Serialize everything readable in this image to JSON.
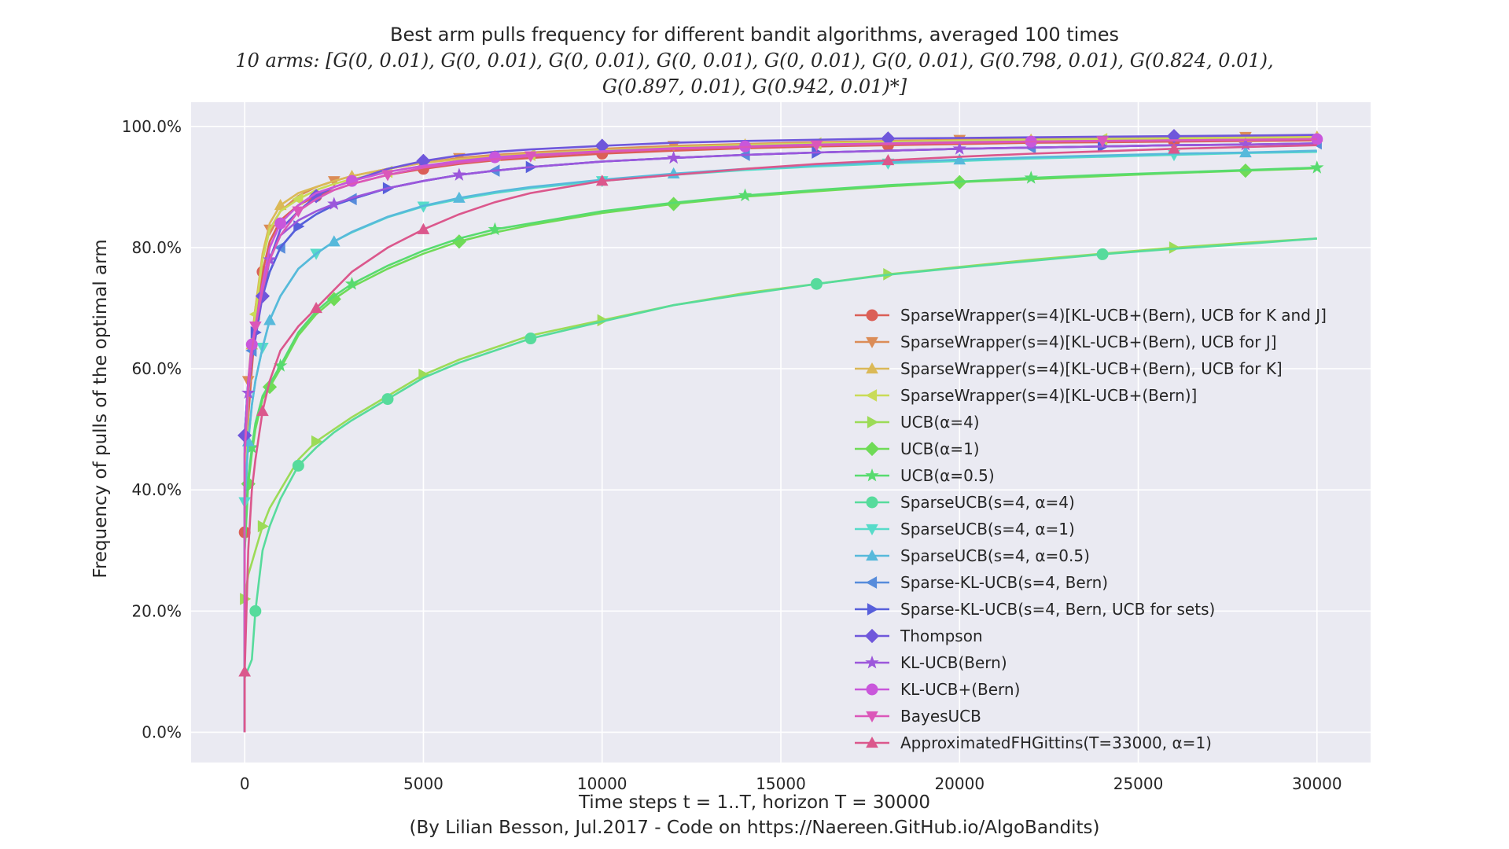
{
  "chart_data": {
    "type": "line",
    "title_line1": "Best arm pulls frequency for different bandit algorithms, averaged 100 times",
    "title_line2": "10 arms: [G(0, 0.01), G(0, 0.01), G(0, 0.01), G(0, 0.01), G(0, 0.01), G(0, 0.01), G(0.798, 0.01), G(0.824, 0.01),",
    "title_line3": "G(0.897, 0.01), G(0.942, 0.01)*]",
    "xlabel": "Time steps t = 1..T, horizon T = 30000",
    "caption": "(By Lilian Besson, Jul.2017 - Code on https://Naereen.GitHub.io/AlgoBandits)",
    "ylabel": "Frequency of pulls of the optimal arm",
    "xlim": [
      -1500,
      31500
    ],
    "ylim": [
      -0.05,
      1.04
    ],
    "xticks": [
      0,
      5000,
      10000,
      15000,
      20000,
      25000,
      30000
    ],
    "xtick_labels": [
      "0",
      "5000",
      "10000",
      "15000",
      "20000",
      "25000",
      "30000"
    ],
    "yticks": [
      0,
      0.2,
      0.4,
      0.6,
      0.8,
      1.0
    ],
    "ytick_labels": [
      "0.0%",
      "20.0%",
      "40.0%",
      "60.0%",
      "80.0%",
      "100.0%"
    ],
    "grid": true,
    "legend_position": "lower-right",
    "x": [
      0,
      100,
      200,
      300,
      500,
      700,
      1000,
      1500,
      2000,
      2500,
      3000,
      4000,
      5000,
      6000,
      7000,
      8000,
      10000,
      12000,
      14000,
      16000,
      18000,
      20000,
      22000,
      24000,
      26000,
      28000,
      30000
    ],
    "series": [
      {
        "name": "SparseWrapper(s=4)[KL-UCB+(Bern), UCB for K and J]",
        "color": "#db5f57",
        "marker": "o",
        "values": [
          0.33,
          0.52,
          0.6,
          0.67,
          0.76,
          0.81,
          0.845,
          0.87,
          0.885,
          0.895,
          0.905,
          0.92,
          0.93,
          0.938,
          0.944,
          0.948,
          0.955,
          0.96,
          0.964,
          0.967,
          0.969,
          0.971,
          0.973,
          0.974,
          0.975,
          0.976,
          0.977
        ]
      },
      {
        "name": "SparseWrapper(s=4)[KL-UCB+(Bern), UCB for J]",
        "color": "#db8c57",
        "marker": "v",
        "values": [
          0.41,
          0.58,
          0.65,
          0.7,
          0.78,
          0.83,
          0.86,
          0.885,
          0.9,
          0.91,
          0.918,
          0.93,
          0.94,
          0.948,
          0.953,
          0.957,
          0.963,
          0.968,
          0.971,
          0.974,
          0.976,
          0.978,
          0.98,
          0.981,
          0.982,
          0.983,
          0.984
        ]
      },
      {
        "name": "SparseWrapper(s=4)[KL-UCB+(Bern), UCB for K]",
        "color": "#dbb957",
        "marker": "^",
        "values": [
          0.37,
          0.56,
          0.64,
          0.7,
          0.79,
          0.84,
          0.87,
          0.89,
          0.9,
          0.91,
          0.918,
          0.93,
          0.94,
          0.946,
          0.951,
          0.955,
          0.961,
          0.966,
          0.97,
          0.972,
          0.975,
          0.977,
          0.978,
          0.98,
          0.981,
          0.982,
          0.983
        ]
      },
      {
        "name": "SparseWrapper(s=4)[KL-UCB+(Bern)]",
        "color": "#c9db57",
        "marker": "<",
        "values": [
          0.37,
          0.55,
          0.63,
          0.69,
          0.78,
          0.83,
          0.86,
          0.88,
          0.895,
          0.905,
          0.913,
          0.925,
          0.935,
          0.942,
          0.948,
          0.953,
          0.96,
          0.965,
          0.969,
          0.972,
          0.974,
          0.976,
          0.978,
          0.979,
          0.98,
          0.981,
          0.982
        ]
      },
      {
        "name": "UCB(α=4)",
        "color": "#9cdb57",
        "marker": ">",
        "values": [
          0.22,
          0.26,
          0.28,
          0.3,
          0.34,
          0.37,
          0.4,
          0.45,
          0.48,
          0.5,
          0.52,
          0.555,
          0.59,
          0.615,
          0.635,
          0.655,
          0.68,
          0.705,
          0.725,
          0.74,
          0.756,
          0.768,
          0.78,
          0.79,
          0.8,
          0.808,
          0.815
        ]
      },
      {
        "name": "UCB(α=1)",
        "color": "#6fdb57",
        "marker": "D",
        "values": [
          0.3,
          0.41,
          0.46,
          0.5,
          0.55,
          0.57,
          0.6,
          0.655,
          0.69,
          0.715,
          0.735,
          0.765,
          0.79,
          0.81,
          0.825,
          0.837,
          0.857,
          0.872,
          0.884,
          0.893,
          0.901,
          0.908,
          0.913,
          0.918,
          0.923,
          0.927,
          0.931
        ]
      },
      {
        "name": "UCB(α=0.5)",
        "color": "#57db6f",
        "marker": "*",
        "values": [
          0.3,
          0.42,
          0.47,
          0.51,
          0.555,
          0.575,
          0.605,
          0.66,
          0.695,
          0.72,
          0.74,
          0.77,
          0.795,
          0.815,
          0.83,
          0.84,
          0.86,
          0.874,
          0.886,
          0.895,
          0.903,
          0.909,
          0.915,
          0.92,
          0.924,
          0.928,
          0.932
        ]
      },
      {
        "name": "SparseUCB(s=4, α=4)",
        "color": "#57db9c",
        "marker": "o",
        "values": [
          0.09,
          0.105,
          0.12,
          0.2,
          0.3,
          0.34,
          0.385,
          0.44,
          0.47,
          0.495,
          0.515,
          0.55,
          0.585,
          0.61,
          0.63,
          0.65,
          0.678,
          0.705,
          0.723,
          0.74,
          0.755,
          0.767,
          0.778,
          0.789,
          0.798,
          0.806,
          0.815
        ]
      },
      {
        "name": "SparseUCB(s=4, α=1)",
        "color": "#57dbc9",
        "marker": "v",
        "values": [
          0.38,
          0.48,
          0.54,
          0.58,
          0.635,
          0.68,
          0.72,
          0.765,
          0.79,
          0.81,
          0.825,
          0.85,
          0.868,
          0.88,
          0.89,
          0.898,
          0.91,
          0.92,
          0.928,
          0.934,
          0.939,
          0.943,
          0.947,
          0.95,
          0.953,
          0.956,
          0.958
        ]
      },
      {
        "name": "SparseUCB(s=4, α=0.5)",
        "color": "#57b9db",
        "marker": "^",
        "values": [
          0.38,
          0.48,
          0.54,
          0.58,
          0.635,
          0.68,
          0.72,
          0.765,
          0.79,
          0.81,
          0.826,
          0.851,
          0.869,
          0.882,
          0.892,
          0.9,
          0.912,
          0.922,
          0.93,
          0.936,
          0.941,
          0.945,
          0.949,
          0.952,
          0.955,
          0.957,
          0.96
        ]
      },
      {
        "name": "Sparse-KL-UCB(s=4, Bern)",
        "color": "#578cdb",
        "marker": "<",
        "values": [
          0.49,
          0.58,
          0.63,
          0.66,
          0.72,
          0.76,
          0.8,
          0.835,
          0.855,
          0.87,
          0.88,
          0.898,
          0.91,
          0.92,
          0.927,
          0.933,
          0.942,
          0.948,
          0.953,
          0.957,
          0.96,
          0.963,
          0.965,
          0.967,
          0.969,
          0.97,
          0.972
        ]
      },
      {
        "name": "Sparse-KL-UCB(s=4, Bern, UCB for sets)",
        "color": "#575fdb",
        "marker": ">",
        "values": [
          0.49,
          0.58,
          0.63,
          0.66,
          0.72,
          0.76,
          0.8,
          0.835,
          0.855,
          0.87,
          0.88,
          0.898,
          0.91,
          0.92,
          0.927,
          0.933,
          0.942,
          0.948,
          0.953,
          0.957,
          0.96,
          0.963,
          0.965,
          0.967,
          0.969,
          0.97,
          0.972
        ]
      },
      {
        "name": "Thompson",
        "color": "#6f57db",
        "marker": "D",
        "values": [
          0.49,
          0.58,
          0.62,
          0.65,
          0.72,
          0.78,
          0.83,
          0.86,
          0.885,
          0.9,
          0.91,
          0.93,
          0.943,
          0.952,
          0.958,
          0.962,
          0.968,
          0.973,
          0.976,
          0.978,
          0.98,
          0.981,
          0.982,
          0.983,
          0.984,
          0.985,
          0.986
        ]
      },
      {
        "name": "KL-UCB(Bern)",
        "color": "#9c57db",
        "marker": "*",
        "values": [
          0.46,
          0.56,
          0.62,
          0.67,
          0.74,
          0.78,
          0.82,
          0.845,
          0.86,
          0.872,
          0.882,
          0.898,
          0.91,
          0.92,
          0.927,
          0.933,
          0.942,
          0.948,
          0.953,
          0.957,
          0.96,
          0.963,
          0.965,
          0.967,
          0.969,
          0.97,
          0.972
        ]
      },
      {
        "name": "KL-UCB+(Bern)",
        "color": "#c957db",
        "marker": "o",
        "values": [
          0.46,
          0.58,
          0.64,
          0.67,
          0.74,
          0.8,
          0.84,
          0.87,
          0.89,
          0.9,
          0.91,
          0.925,
          0.935,
          0.943,
          0.949,
          0.953,
          0.959,
          0.964,
          0.967,
          0.97,
          0.972,
          0.974,
          0.975,
          0.976,
          0.977,
          0.978,
          0.979
        ]
      },
      {
        "name": "BayesUCB",
        "color": "#db57b9",
        "marker": "v",
        "values": [
          0.46,
          0.57,
          0.63,
          0.67,
          0.73,
          0.78,
          0.82,
          0.86,
          0.88,
          0.895,
          0.905,
          0.92,
          0.932,
          0.94,
          0.946,
          0.951,
          0.958,
          0.963,
          0.966,
          0.969,
          0.971,
          0.973,
          0.975,
          0.976,
          0.977,
          0.978,
          0.979
        ]
      },
      {
        "name": "ApproximatedFHGittins(T=33000, α=1)",
        "color": "#db578c",
        "marker": "^",
        "values": [
          0.1,
          0.3,
          0.4,
          0.45,
          0.53,
          0.58,
          0.63,
          0.67,
          0.7,
          0.73,
          0.76,
          0.8,
          0.83,
          0.855,
          0.875,
          0.89,
          0.91,
          0.92,
          0.93,
          0.938,
          0.944,
          0.95,
          0.955,
          0.959,
          0.963,
          0.966,
          0.969
        ]
      }
    ]
  }
}
